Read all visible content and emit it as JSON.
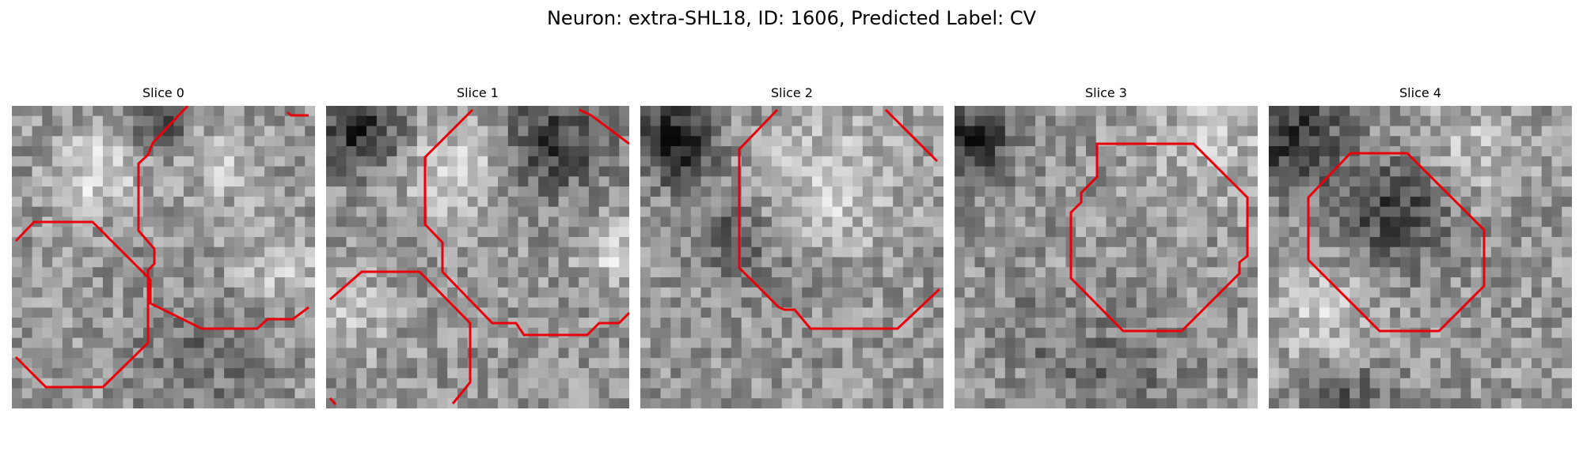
{
  "figure": {
    "title": "Neuron: extra-SHL18, ID: 1606, Predicted Label: CV"
  },
  "panels": [
    {
      "title": "Slice 0"
    },
    {
      "title": "Slice 1"
    },
    {
      "title": "Slice 2"
    },
    {
      "title": "Slice 3"
    },
    {
      "title": "Slice 4"
    }
  ],
  "colors": {
    "contour": "#e8000b"
  }
}
